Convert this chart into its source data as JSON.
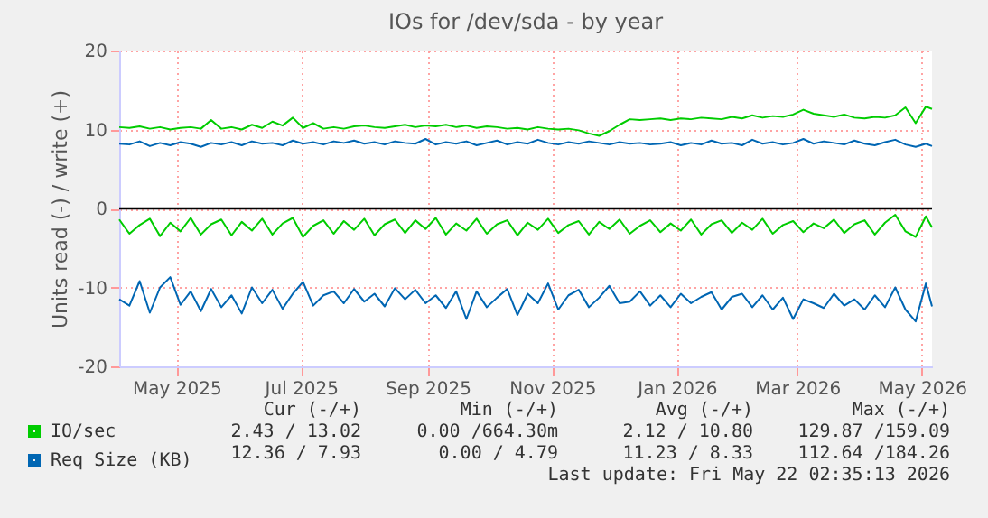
{
  "chart_data": {
    "type": "line",
    "title": "IOs for /dev/sda - by year",
    "ylabel": "Units read (-) / write (+)",
    "x": [
      "2025-04-18",
      "2025-04-23",
      "2025-04-28",
      "2025-05-03",
      "2025-05-08",
      "2025-05-13",
      "2025-05-18",
      "2025-05-23",
      "2025-05-28",
      "2025-06-02",
      "2025-06-07",
      "2025-06-12",
      "2025-06-17",
      "2025-06-22",
      "2025-06-27",
      "2025-07-02",
      "2025-07-07",
      "2025-07-12",
      "2025-07-17",
      "2025-07-22",
      "2025-07-27",
      "2025-08-01",
      "2025-08-06",
      "2025-08-11",
      "2025-08-16",
      "2025-08-21",
      "2025-08-26",
      "2025-08-31",
      "2025-09-05",
      "2025-09-10",
      "2025-09-15",
      "2025-09-20",
      "2025-09-25",
      "2025-09-30",
      "2025-10-05",
      "2025-10-10",
      "2025-10-15",
      "2025-10-20",
      "2025-10-25",
      "2025-10-30",
      "2025-11-04",
      "2025-11-09",
      "2025-11-14",
      "2025-11-19",
      "2025-11-24",
      "2025-11-29",
      "2025-12-04",
      "2025-12-09",
      "2025-12-14",
      "2025-12-19",
      "2025-12-24",
      "2025-12-29",
      "2026-01-03",
      "2026-01-08",
      "2026-01-13",
      "2026-01-18",
      "2026-01-23",
      "2026-01-28",
      "2026-02-02",
      "2026-02-07",
      "2026-02-12",
      "2026-02-17",
      "2026-02-22",
      "2026-02-27",
      "2026-03-04",
      "2026-03-09",
      "2026-03-14",
      "2026-03-19",
      "2026-03-24",
      "2026-03-29",
      "2026-04-03",
      "2026-04-08",
      "2026-04-13",
      "2026-04-18",
      "2026-04-23",
      "2026-04-28",
      "2026-05-03",
      "2026-05-08",
      "2026-05-13",
      "2026-05-18",
      "2026-05-21"
    ],
    "series": [
      {
        "name": "IO/sec",
        "color": "#00cc00",
        "values": [
          10.3,
          10.2,
          10.4,
          10.1,
          10.3,
          10.0,
          10.2,
          10.3,
          10.1,
          11.2,
          10.1,
          10.3,
          10.0,
          10.6,
          10.2,
          11.0,
          10.5,
          11.5,
          10.2,
          10.8,
          10.1,
          10.3,
          10.1,
          10.4,
          10.5,
          10.3,
          10.2,
          10.4,
          10.6,
          10.3,
          10.5,
          10.4,
          10.6,
          10.3,
          10.5,
          10.2,
          10.4,
          10.3,
          10.1,
          10.2,
          10.0,
          10.3,
          10.1,
          10.0,
          10.1,
          9.9,
          9.5,
          9.2,
          9.8,
          10.6,
          11.3,
          11.2,
          11.3,
          11.4,
          11.2,
          11.4,
          11.3,
          11.5,
          11.4,
          11.3,
          11.6,
          11.4,
          11.8,
          11.5,
          11.7,
          11.6,
          11.9,
          12.5,
          12.0,
          11.8,
          11.6,
          11.9,
          11.5,
          11.4,
          11.6,
          11.5,
          11.8,
          12.8,
          10.8,
          12.9,
          12.6
        ]
      },
      {
        "color": "#00cc00",
        "values": [
          -1.4,
          -3.2,
          -2.1,
          -1.3,
          -3.5,
          -1.8,
          -2.9,
          -1.2,
          -3.3,
          -2.0,
          -1.4,
          -3.4,
          -1.7,
          -2.8,
          -1.3,
          -3.3,
          -1.9,
          -1.2,
          -3.6,
          -2.2,
          -1.5,
          -3.2,
          -1.6,
          -2.7,
          -1.3,
          -3.4,
          -2.0,
          -1.4,
          -3.1,
          -1.5,
          -2.6,
          -1.2,
          -3.3,
          -1.9,
          -2.8,
          -1.3,
          -3.2,
          -2.0,
          -1.5,
          -3.4,
          -1.8,
          -2.7,
          -1.3,
          -3.1,
          -2.1,
          -1.6,
          -3.3,
          -1.7,
          -2.6,
          -1.4,
          -3.2,
          -2.2,
          -1.5,
          -3.0,
          -1.9,
          -2.8,
          -1.4,
          -3.3,
          -2.0,
          -1.5,
          -3.1,
          -1.8,
          -2.7,
          -1.3,
          -3.2,
          -2.1,
          -1.6,
          -3.0,
          -1.9,
          -2.5,
          -1.4,
          -3.1,
          -2.0,
          -1.5,
          -3.3,
          -1.8,
          -0.8,
          -2.9,
          -3.6,
          -1.0,
          -2.4
        ]
      },
      {
        "name": "Req Size (KB)",
        "color": "#0066b3",
        "values": [
          8.2,
          8.1,
          8.5,
          7.9,
          8.3,
          8.0,
          8.4,
          8.2,
          7.8,
          8.3,
          8.1,
          8.4,
          8.0,
          8.5,
          8.2,
          8.3,
          8.0,
          8.6,
          8.2,
          8.4,
          8.1,
          8.5,
          8.3,
          8.6,
          8.2,
          8.4,
          8.1,
          8.5,
          8.3,
          8.2,
          8.8,
          8.1,
          8.4,
          8.2,
          8.5,
          8.0,
          8.3,
          8.6,
          8.1,
          8.4,
          8.2,
          8.7,
          8.3,
          8.1,
          8.4,
          8.2,
          8.5,
          8.3,
          8.1,
          8.4,
          8.2,
          8.3,
          8.1,
          8.2,
          8.4,
          8.0,
          8.3,
          8.1,
          8.6,
          8.2,
          8.3,
          8.0,
          8.7,
          8.2,
          8.4,
          8.1,
          8.3,
          8.8,
          8.2,
          8.5,
          8.3,
          8.1,
          8.6,
          8.2,
          8.0,
          8.4,
          8.7,
          8.1,
          7.8,
          8.2,
          7.9
        ]
      },
      {
        "color": "#0066b3",
        "values": [
          -11.5,
          -12.3,
          -9.2,
          -13.2,
          -10.0,
          -8.7,
          -12.2,
          -10.5,
          -13.0,
          -10.2,
          -12.5,
          -11.0,
          -13.3,
          -10.0,
          -12.0,
          -10.3,
          -12.7,
          -10.8,
          -9.3,
          -12.3,
          -11.0,
          -10.5,
          -12.0,
          -10.2,
          -11.8,
          -10.8,
          -12.4,
          -10.1,
          -11.5,
          -10.3,
          -12.0,
          -11.0,
          -12.6,
          -10.5,
          -14.0,
          -10.5,
          -12.5,
          -11.3,
          -10.2,
          -13.5,
          -10.8,
          -12.0,
          -9.5,
          -12.8,
          -11.0,
          -10.3,
          -12.5,
          -11.3,
          -9.8,
          -12.0,
          -11.8,
          -10.5,
          -12.3,
          -11.0,
          -12.5,
          -10.8,
          -12.0,
          -11.2,
          -10.6,
          -12.8,
          -11.2,
          -10.8,
          -12.5,
          -11.0,
          -12.8,
          -11.3,
          -14.0,
          -11.5,
          -12.0,
          -12.6,
          -10.8,
          -12.3,
          -11.5,
          -12.8,
          -11.0,
          -12.5,
          -10.0,
          -12.8,
          -14.3,
          -9.5,
          -12.4
        ]
      }
    ],
    "xlim": [
      "2025-04-18",
      "2026-05-21"
    ],
    "xticks": [
      {
        "value": "2025-05-16",
        "label": "May 2025"
      },
      {
        "value": "2025-07-16",
        "label": "Jul 2025"
      },
      {
        "value": "2025-09-16",
        "label": "Sep 2025"
      },
      {
        "value": "2025-11-16",
        "label": "Nov 2025"
      },
      {
        "value": "2026-01-16",
        "label": "Jan 2026"
      },
      {
        "value": "2026-03-16",
        "label": "Mar 2026"
      },
      {
        "value": "2026-05-16",
        "label": "May 2026"
      }
    ],
    "ylim": [
      -20,
      20
    ],
    "yticks": [
      -20,
      -10,
      0,
      10,
      20
    ],
    "grid": true,
    "legend": "bottom left",
    "marker": "none",
    "line_style": "solid",
    "ref_lines": [
      {
        "axis": "y",
        "value": 0,
        "color": "#000000"
      }
    ],
    "annotations": [
      "Cur (-/+)",
      "Min (-/+)",
      "Avg (-/+)",
      "Max (-/+)",
      "2.43 / 13.02",
      "0.00 /664.30m",
      "2.12 / 10.80",
      "129.87 /159.09",
      "12.36 / 7.93",
      "0.00 / 4.79",
      "11.23 / 8.33",
      "112.64 /184.26",
      "Last update: Fri May 22 02:35:13 2026"
    ]
  }
}
